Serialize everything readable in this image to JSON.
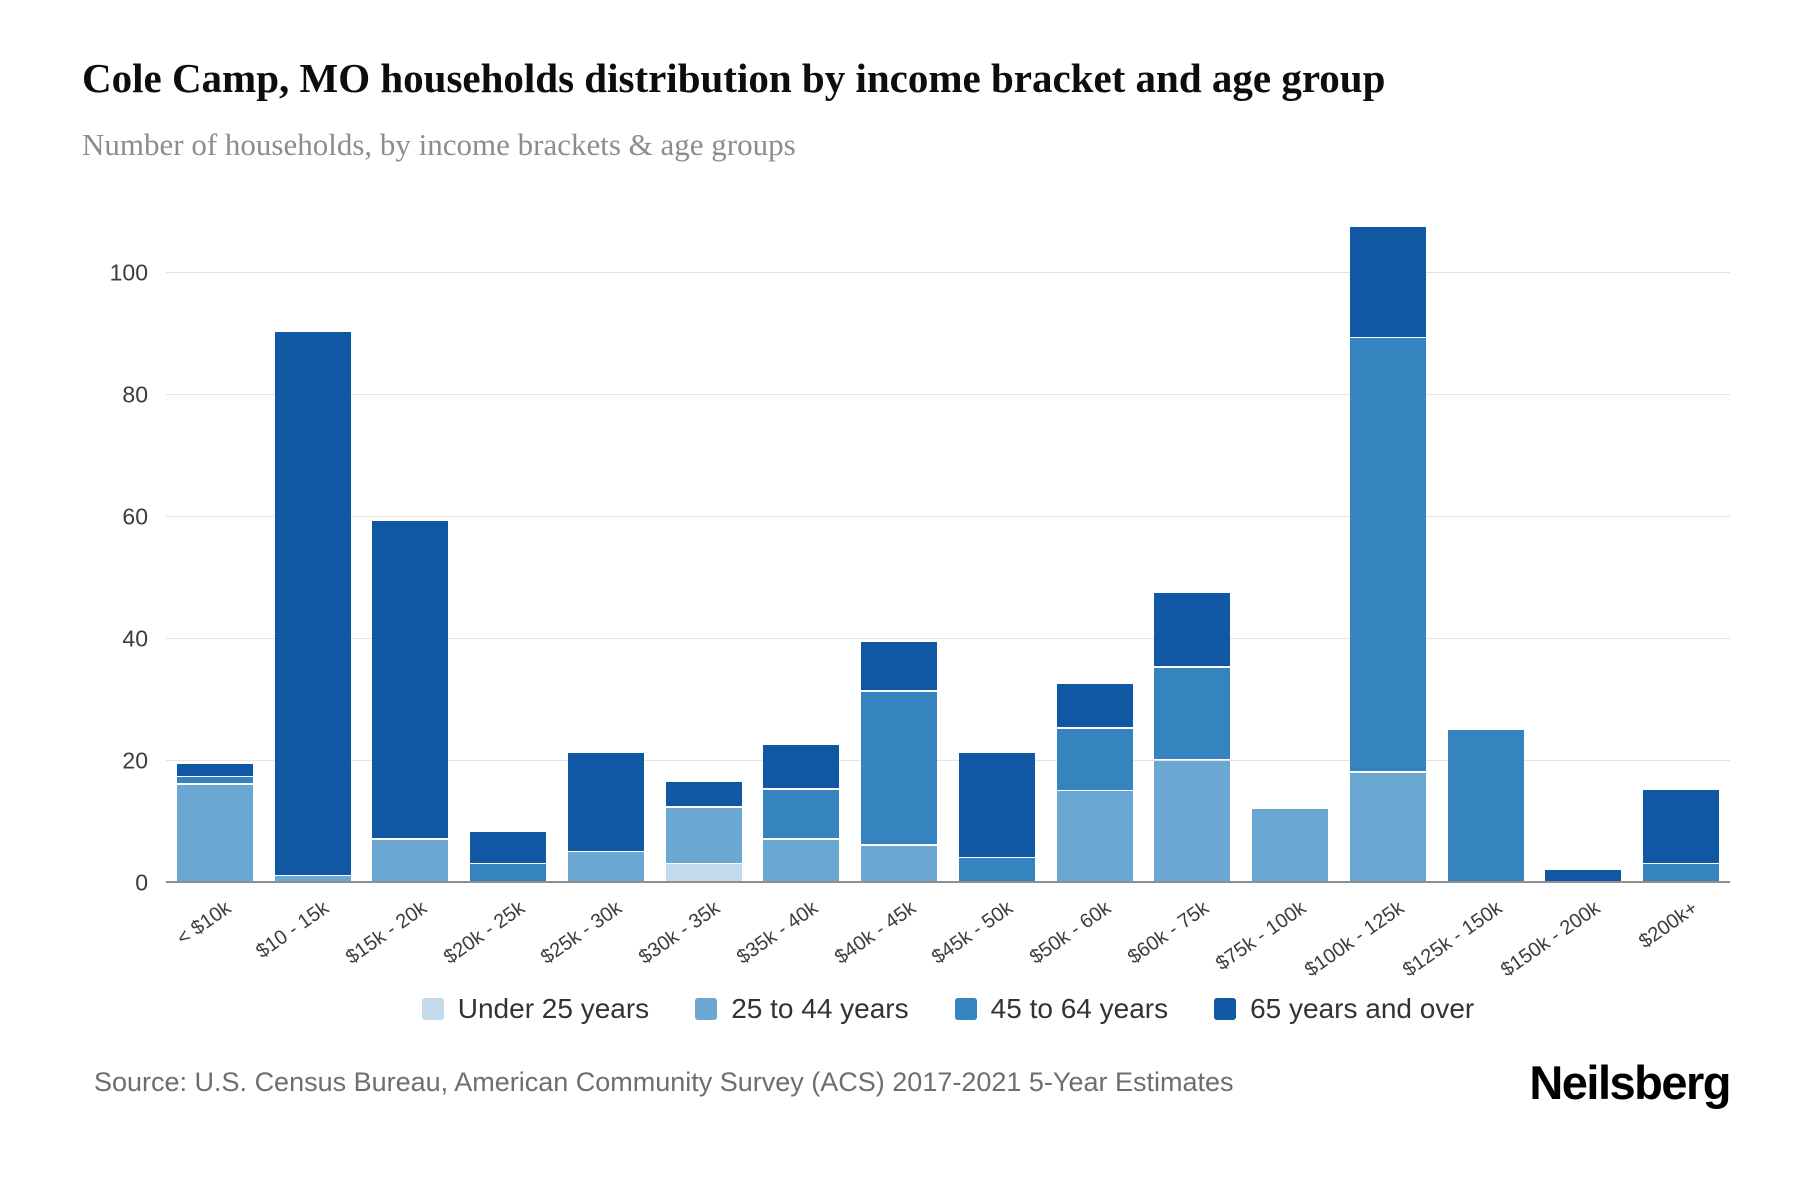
{
  "header": {
    "title": "Cole Camp, MO households distribution by income bracket and age group",
    "subtitle": "Number of households, by income brackets & age groups"
  },
  "footer": {
    "source": "Source: U.S. Census Bureau, American Community Survey (ACS) 2017-2021 5-Year Estimates",
    "brand": "Neilsberg"
  },
  "colors": {
    "under_25": "#c3daeb",
    "25_to_44": "#6aa7d3",
    "45_to_64": "#3583bf",
    "65_and_over": "#1058a4",
    "gridline": "#e3e3e3",
    "axis": "#8f8f8f"
  },
  "chart_data": {
    "type": "bar",
    "stacked": true,
    "title": "Cole Camp, MO households distribution by income bracket and age group",
    "subtitle": "Number of households, by income brackets & age groups",
    "xlabel": "",
    "ylabel": "Number of households",
    "ylim": [
      0,
      110
    ],
    "yticks": [
      0,
      20,
      40,
      60,
      80,
      100
    ],
    "grid": true,
    "legend_position": "bottom",
    "categories": [
      "< $10k",
      "$10 - 15k",
      "$15k - 20k",
      "$20k - 25k",
      "$25k - 30k",
      "$30k - 35k",
      "$35k - 40k",
      "$40k - 45k",
      "$45k - 50k",
      "$50k - 60k",
      "$60k - 75k",
      "$75k - 100k",
      "$100k - 125k",
      "$125k - 150k",
      "$150k - 200k",
      "$200k+"
    ],
    "series": [
      {
        "name": "Under 25 years",
        "color": "#c3daeb",
        "values": [
          0,
          0,
          0,
          0,
          0,
          3,
          0,
          0,
          0,
          0,
          0,
          0,
          0,
          0,
          0,
          0
        ]
      },
      {
        "name": "25 to 44 years",
        "color": "#6aa7d3",
        "values": [
          16,
          1,
          7,
          0,
          5,
          9,
          7,
          6,
          0,
          15,
          20,
          12,
          18,
          0,
          0,
          0
        ]
      },
      {
        "name": "45 to 64 years",
        "color": "#3583bf",
        "values": [
          1,
          0,
          0,
          3,
          0,
          0,
          8,
          25,
          4,
          10,
          15,
          0,
          71,
          25,
          0,
          3
        ]
      },
      {
        "name": "65 years and over",
        "color": "#1058a4",
        "values": [
          2,
          89,
          52,
          5,
          16,
          4,
          7,
          8,
          17,
          7,
          12,
          0,
          18,
          0,
          2,
          12
        ]
      }
    ],
    "totals": [
      19,
      90,
      59,
      8,
      21,
      16,
      22,
      39,
      21,
      32,
      47,
      12,
      107,
      25,
      2,
      15
    ]
  }
}
